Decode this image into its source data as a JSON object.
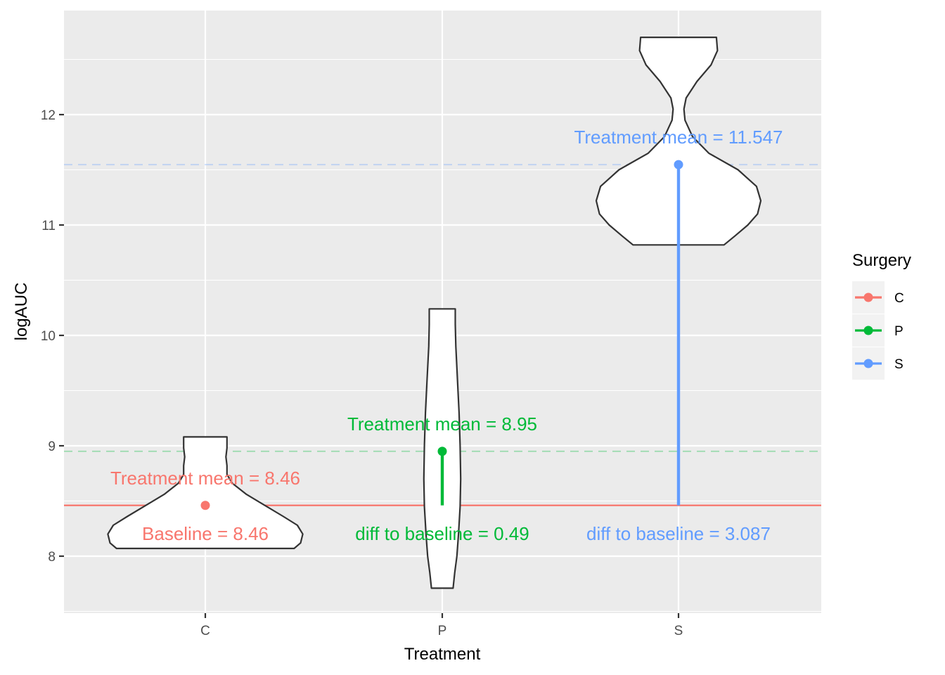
{
  "chart_data": {
    "type": "violin",
    "xlabel": "Treatment",
    "ylabel": "logAUC",
    "categories": [
      "C",
      "P",
      "S"
    ],
    "ylim": [
      7.48,
      12.92
    ],
    "yticks": [
      8,
      9,
      10,
      11,
      12
    ],
    "grid": true,
    "baseline": {
      "value": 8.46,
      "color": "#F8766D"
    },
    "legend": {
      "title": "Surgery",
      "placement": "right",
      "items": [
        {
          "label": "C",
          "color": "#F8766D"
        },
        {
          "label": "P",
          "color": "#00BA38"
        },
        {
          "label": "S",
          "color": "#619CFF"
        }
      ]
    },
    "series": [
      {
        "name": "C",
        "category": "C",
        "color": "#F8766D",
        "mean": 8.46,
        "min": 8.07,
        "max": 9.08,
        "mean_label": "Treatment mean = 8.46",
        "bottom_label": "Baseline = 8.46",
        "density": [
          [
            8.07,
            0.82
          ],
          [
            8.12,
            0.88
          ],
          [
            8.2,
            0.9
          ],
          [
            8.28,
            0.85
          ],
          [
            8.36,
            0.72
          ],
          [
            8.46,
            0.55
          ],
          [
            8.56,
            0.38
          ],
          [
            8.66,
            0.25
          ],
          [
            8.74,
            0.2
          ],
          [
            8.82,
            0.2
          ],
          [
            8.9,
            0.19
          ],
          [
            8.98,
            0.2
          ],
          [
            9.08,
            0.2
          ]
        ]
      },
      {
        "name": "P",
        "category": "P",
        "color": "#00BA38",
        "mean": 8.95,
        "min": 7.71,
        "max": 10.24,
        "mean_label": "Treatment mean = 8.95",
        "bottom_label": "diff to baseline = 0.49",
        "density": [
          [
            7.71,
            0.1
          ],
          [
            7.85,
            0.115
          ],
          [
            8.0,
            0.135
          ],
          [
            8.2,
            0.15
          ],
          [
            8.45,
            0.165
          ],
          [
            8.7,
            0.17
          ],
          [
            9.0,
            0.165
          ],
          [
            9.3,
            0.155
          ],
          [
            9.6,
            0.14
          ],
          [
            9.9,
            0.125
          ],
          [
            10.1,
            0.12
          ],
          [
            10.24,
            0.12
          ]
        ]
      },
      {
        "name": "S",
        "category": "S",
        "color": "#619CFF",
        "mean": 11.547,
        "min": 10.82,
        "max": 12.7,
        "mean_label": "Treatment mean = 11.547",
        "bottom_label": "diff to baseline = 3.087",
        "density": [
          [
            10.82,
            0.42
          ],
          [
            10.9,
            0.52
          ],
          [
            11.0,
            0.64
          ],
          [
            11.1,
            0.73
          ],
          [
            11.22,
            0.76
          ],
          [
            11.35,
            0.72
          ],
          [
            11.5,
            0.55
          ],
          [
            11.65,
            0.28
          ],
          [
            11.8,
            0.13
          ],
          [
            11.95,
            0.06
          ],
          [
            12.05,
            0.05
          ],
          [
            12.15,
            0.07
          ],
          [
            12.3,
            0.17
          ],
          [
            12.45,
            0.3
          ],
          [
            12.58,
            0.36
          ],
          [
            12.7,
            0.35
          ]
        ]
      }
    ]
  }
}
